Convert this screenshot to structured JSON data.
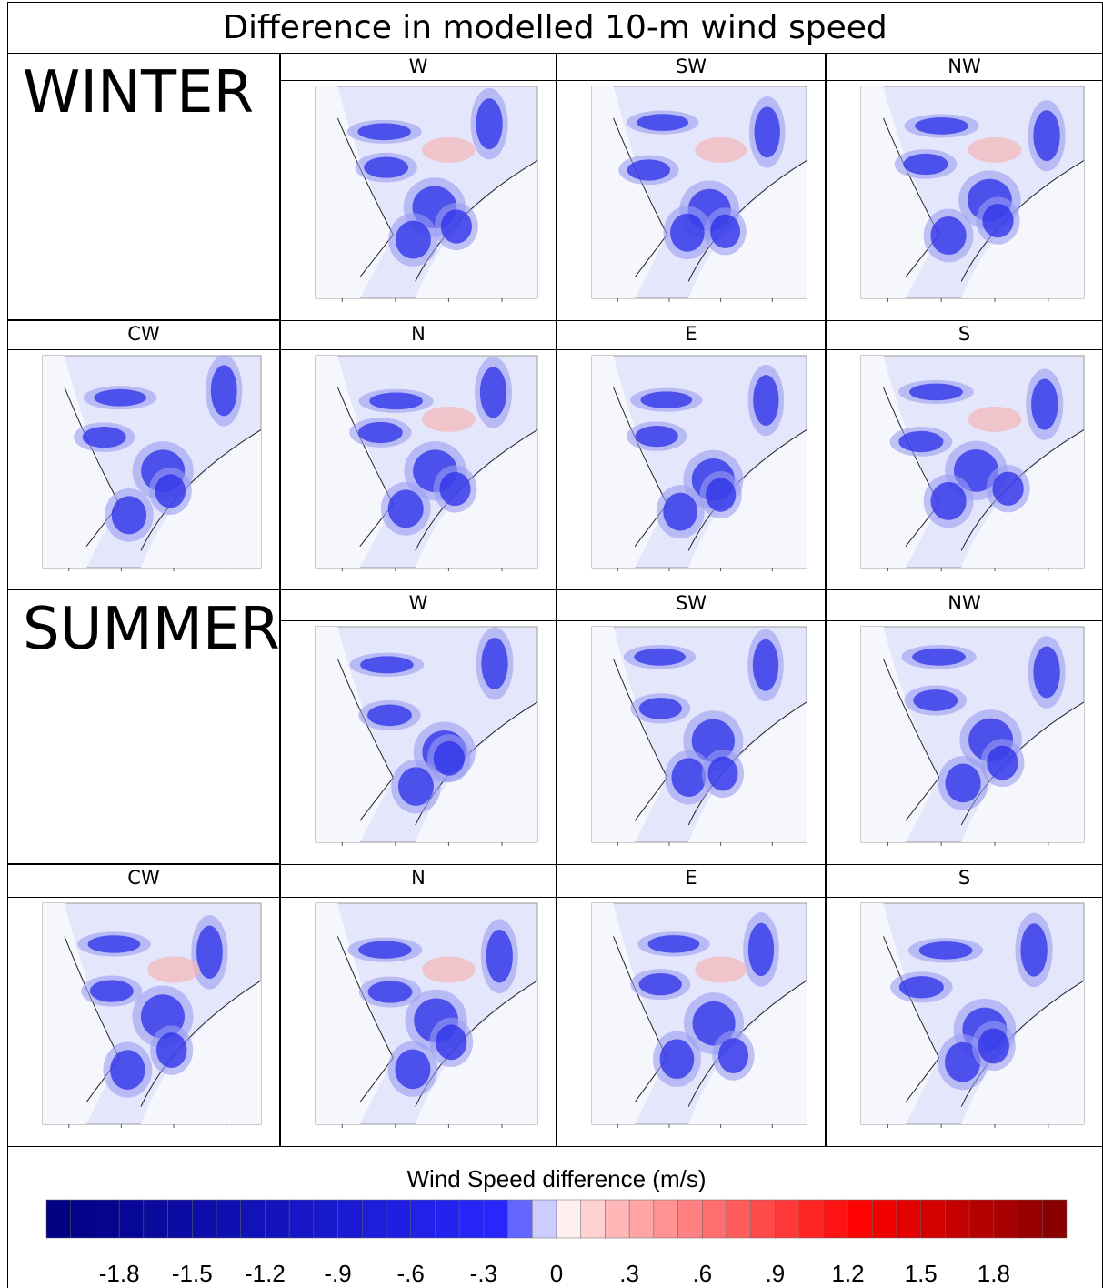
{
  "title": "Difference in modelled 10-m wind speed",
  "seasons": [
    {
      "label": "WINTER",
      "panels": [
        "W",
        "SW",
        "NW",
        "CW",
        "N",
        "E",
        "S"
      ]
    },
    {
      "label": "SUMMER",
      "panels": [
        "W",
        "SW",
        "NW",
        "CW",
        "N",
        "E",
        "S"
      ]
    }
  ],
  "colorbar": {
    "title": "Wind Speed difference (m/s)",
    "lim": [
      -2.1,
      2.1
    ],
    "ticks": [
      {
        "value": -1.8,
        "label": "-1.8"
      },
      {
        "value": -1.5,
        "label": "-1.5"
      },
      {
        "value": -1.2,
        "label": "-1.2"
      },
      {
        "value": -0.9,
        "label": "-.9"
      },
      {
        "value": -0.6,
        "label": "-.6"
      },
      {
        "value": -0.3,
        "label": "-.3"
      },
      0,
      {
        "value": 0.3,
        "label": ".3"
      },
      {
        "value": 0.6,
        "label": ".6"
      },
      {
        "value": 0.9,
        "label": ".9"
      },
      {
        "value": 1.2,
        "label": "1.2"
      },
      {
        "value": 1.5,
        "label": "1.5"
      },
      {
        "value": 1.8,
        "label": "1.8"
      }
    ]
  }
}
